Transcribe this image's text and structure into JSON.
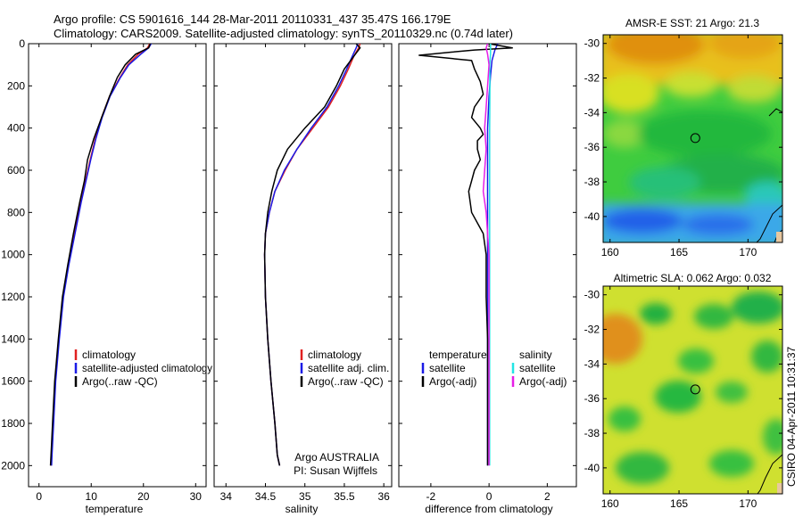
{
  "header": {
    "line1": "Argo profile: CS 5901616_144 28-Mar-2011 20110331_437 35.47S 166.179E",
    "line2": "Climatology: CARS2009. Satellite-adjusted climatology: synTS_20110329.nc (0.74d later)"
  },
  "side_label": "CSIRO 04-Apr-2011 10:31:37",
  "colors": {
    "climatology": "#e02020",
    "satellite": "#1a1ae6",
    "argo": "#000000",
    "salinity_satellite": "#22e5e5",
    "salinity_argo": "#e61ee6"
  },
  "chart_data": [
    {
      "type": "line",
      "panel": "temperature",
      "xlabel": "temperature",
      "xticks": [
        0,
        10,
        20,
        30
      ],
      "xlim": [
        -2,
        32
      ],
      "yticks": [
        0,
        200,
        400,
        600,
        800,
        1000,
        1200,
        1400,
        1600,
        1800,
        2000
      ],
      "ylim": [
        2100,
        0
      ],
      "y_axis": "depth",
      "legend": [
        "climatology",
        "satellite-adjusted climatology",
        "Argo(..raw -QC)"
      ],
      "legend_placement": "lower-right",
      "series": [
        {
          "name": "climatology",
          "x": [
            21.2,
            20.8,
            19.0,
            17.0,
            15.5,
            13.5,
            12.0,
            10.8,
            9.8,
            8.9,
            8.0,
            6.8,
            5.6,
            4.6,
            3.8,
            3.1,
            2.7,
            2.4,
            2.3
          ],
          "y": [
            0,
            20,
            50,
            100,
            160,
            250,
            350,
            450,
            550,
            650,
            750,
            900,
            1050,
            1200,
            1400,
            1600,
            1800,
            1950,
            2000
          ]
        },
        {
          "name": "satellite-adjusted climatology",
          "x": [
            21.5,
            21.0,
            19.5,
            17.2,
            15.6,
            13.6,
            12.1,
            10.9,
            9.9,
            9.0,
            8.1,
            6.9,
            5.7,
            4.7,
            3.9,
            3.2,
            2.8,
            2.5,
            2.4
          ],
          "y": [
            0,
            20,
            50,
            100,
            160,
            250,
            350,
            450,
            550,
            650,
            750,
            900,
            1050,
            1200,
            1400,
            1600,
            1800,
            1950,
            2000
          ]
        },
        {
          "name": "Argo(..raw -QC)",
          "x": [
            21.3,
            21.0,
            18.5,
            16.5,
            15.0,
            13.5,
            12.0,
            10.5,
            9.3,
            8.7,
            7.8,
            6.6,
            5.5,
            4.5,
            3.7,
            3.0,
            2.6,
            2.3,
            2.2
          ],
          "y": [
            0,
            20,
            50,
            100,
            160,
            250,
            350,
            450,
            550,
            650,
            750,
            900,
            1050,
            1200,
            1400,
            1600,
            1800,
            1950,
            2000
          ]
        }
      ]
    },
    {
      "type": "line",
      "panel": "salinity",
      "xlabel": "salinity",
      "xticks": [
        34,
        34.5,
        35,
        35.5,
        36
      ],
      "xlim": [
        33.85,
        36.1
      ],
      "ylim": [
        2100,
        0
      ],
      "y_axis": "depth",
      "legend": [
        "climatology",
        "satellite adj. clim.",
        "Argo(..raw -QC)"
      ],
      "legend_placement": "lower-right",
      "annotation": [
        "Argo AUSTRALIA",
        "PI: Susan Wijffels"
      ],
      "series": [
        {
          "name": "climatology",
          "x": [
            35.7,
            35.68,
            35.62,
            35.55,
            35.45,
            35.3,
            35.1,
            34.9,
            34.75,
            34.62,
            34.55,
            34.5,
            34.49,
            34.5,
            34.53,
            34.57,
            34.62,
            34.65,
            34.68
          ],
          "y": [
            0,
            20,
            60,
            120,
            200,
            300,
            400,
            500,
            600,
            700,
            800,
            900,
            1000,
            1200,
            1400,
            1600,
            1800,
            1950,
            2000
          ]
        },
        {
          "name": "satellite adj. clim.",
          "x": [
            35.67,
            35.65,
            35.6,
            35.53,
            35.43,
            35.28,
            35.08,
            34.9,
            34.74,
            34.62,
            34.55,
            34.5,
            34.49,
            34.5,
            34.53,
            34.57,
            34.62,
            34.65,
            34.68
          ],
          "y": [
            0,
            20,
            60,
            120,
            200,
            300,
            400,
            500,
            600,
            700,
            800,
            900,
            1000,
            1200,
            1400,
            1600,
            1800,
            1950,
            2000
          ]
        },
        {
          "name": "Argo(..raw -QC)",
          "x": [
            35.65,
            35.7,
            35.62,
            35.5,
            35.4,
            35.25,
            35.0,
            34.78,
            34.65,
            34.58,
            34.53,
            34.5,
            34.49,
            34.5,
            34.53,
            34.57,
            34.62,
            34.65,
            34.68
          ],
          "y": [
            0,
            20,
            60,
            120,
            200,
            300,
            400,
            500,
            600,
            700,
            800,
            900,
            1000,
            1200,
            1400,
            1600,
            1800,
            1950,
            2000
          ]
        }
      ]
    },
    {
      "type": "line",
      "panel": "difference",
      "xlabel": "difference from climatology",
      "xticks": [
        -2,
        0,
        2
      ],
      "xlim": [
        -3.1,
        3.0
      ],
      "ylim": [
        2100,
        0
      ],
      "y_axis": "depth",
      "legend_titles": [
        "temperature",
        "salinity"
      ],
      "legend": [
        "satellite",
        "Argo(-adj)",
        "satellite",
        "Argo(-adj)"
      ],
      "legend_placement": "lower-center",
      "series": [
        {
          "name": "temperature satellite",
          "x": [
            0.3,
            0.2,
            0.1,
            0.05,
            0.0,
            -0.05,
            -0.05,
            -0.05,
            -0.05,
            -0.05,
            -0.05,
            -0.05,
            -0.05,
            -0.05,
            -0.05
          ],
          "y": [
            0,
            30,
            80,
            150,
            250,
            400,
            550,
            700,
            850,
            1000,
            1200,
            1400,
            1600,
            1800,
            2000
          ]
        },
        {
          "name": "temperature Argo(-adj)",
          "x": [
            0.0,
            0.8,
            -0.5,
            -1.3,
            -2.4,
            -0.6,
            -0.5,
            -0.3,
            -0.2,
            -0.5,
            -0.6,
            -0.3,
            -0.2,
            -0.4,
            -0.4,
            -0.3,
            -0.5,
            -0.6,
            -0.7,
            -0.6,
            -0.2,
            -0.1,
            -0.1,
            -0.05,
            -0.05,
            -0.05,
            -0.05
          ],
          "y": [
            0,
            20,
            30,
            40,
            55,
            80,
            120,
            180,
            240,
            300,
            350,
            400,
            430,
            460,
            500,
            550,
            600,
            650,
            700,
            800,
            900,
            1000,
            1200,
            1400,
            1600,
            1800,
            2000
          ]
        },
        {
          "name": "salinity satellite",
          "x": [
            0.05,
            0.05,
            0.02,
            0.03,
            0.02,
            0.02,
            0.02,
            0.02,
            0.02,
            0.02,
            0.02,
            0.02
          ],
          "y": [
            0,
            50,
            100,
            200,
            400,
            600,
            800,
            1000,
            1200,
            1500,
            1800,
            2000
          ]
        },
        {
          "name": "salinity Argo(-adj)",
          "x": [
            -0.05,
            -0.1,
            -0.05,
            0.0,
            -0.05,
            -0.1,
            -0.15,
            -0.1,
            -0.15,
            -0.2,
            -0.1,
            -0.05,
            0.0,
            0.0
          ],
          "y": [
            0,
            20,
            50,
            100,
            200,
            300,
            400,
            500,
            600,
            700,
            800,
            900,
            1000,
            2000
          ]
        }
      ]
    },
    {
      "type": "heatmap",
      "panel": "sst-map",
      "title": "AMSR-E SST: 21 Argo: 21.3",
      "xticks": [
        160,
        165,
        170
      ],
      "xlim": [
        159.5,
        172.5
      ],
      "yticks": [
        -30,
        -32,
        -34,
        -36,
        -38,
        -40
      ],
      "ylim": [
        -41.5,
        -29.5
      ],
      "marker": {
        "lon": 166.179,
        "lat": -35.47
      }
    },
    {
      "type": "heatmap",
      "panel": "sla-map",
      "title": "Altimetric SLA: 0.062 Argo: 0.032",
      "xticks": [
        160,
        165,
        170
      ],
      "xlim": [
        159.5,
        172.5
      ],
      "yticks": [
        -30,
        -32,
        -34,
        -36,
        -38,
        -40
      ],
      "ylim": [
        -41.5,
        -29.5
      ],
      "marker": {
        "lon": 166.179,
        "lat": -35.47
      }
    }
  ]
}
